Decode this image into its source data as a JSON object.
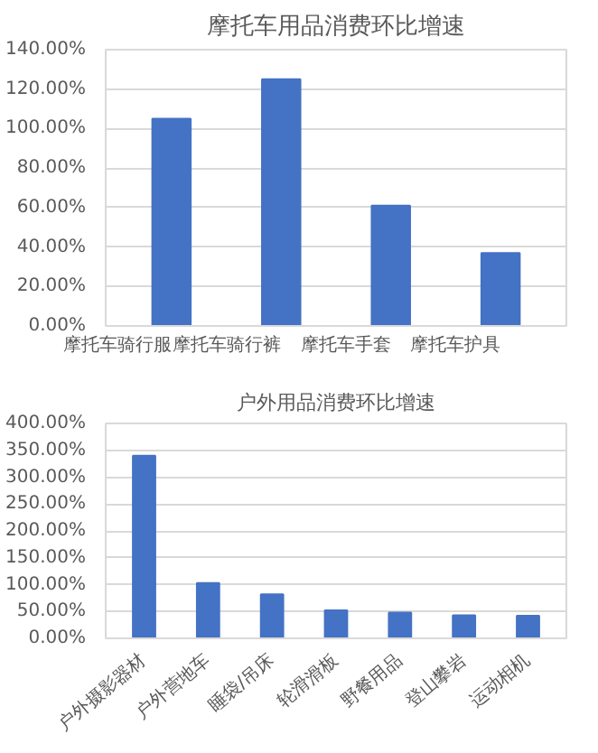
{
  "chart_data": [
    {
      "type": "bar",
      "title": "摩托车用品消费环比增速",
      "categories": [
        "摩托车骑行服",
        "摩托车骑行裤",
        "摩托车手套",
        "摩托车护具"
      ],
      "values": [
        105,
        125,
        61,
        37
      ],
      "color": "#4472c4",
      "ylim": [
        0,
        140
      ],
      "yticks": [
        {
          "value": 0,
          "label": "0.00%"
        },
        {
          "value": 20,
          "label": "20.00%"
        },
        {
          "value": 40,
          "label": "40.00%"
        },
        {
          "value": 60,
          "label": "60.00%"
        },
        {
          "value": 80,
          "label": "80.00%"
        },
        {
          "value": 100,
          "label": "100.00%"
        },
        {
          "value": 120,
          "label": "120.00%"
        },
        {
          "value": 140,
          "label": "140.00%"
        }
      ],
      "grid": "y",
      "legend": false
    },
    {
      "type": "bar",
      "title": "户外用品消费环比增速",
      "categories": [
        "户外摄影器材",
        "户外营地车",
        "睡袋/吊床",
        "轮滑滑板",
        "野餐用品",
        "登山攀岩",
        "运动相机"
      ],
      "values": [
        340,
        103,
        82,
        52,
        48,
        43,
        42
      ],
      "color": "#4472c4",
      "ylim": [
        0,
        400
      ],
      "yticks": [
        {
          "value": 0,
          "label": "0.00%"
        },
        {
          "value": 50,
          "label": "50.00%"
        },
        {
          "value": 100,
          "label": "100.00%"
        },
        {
          "value": 150,
          "label": "150.00%"
        },
        {
          "value": 200,
          "label": "200.00%"
        },
        {
          "value": 250,
          "label": "250.00%"
        },
        {
          "value": 300,
          "label": "300.00%"
        },
        {
          "value": 350,
          "label": "350.00%"
        },
        {
          "value": 400,
          "label": "400.00%"
        }
      ],
      "grid": "y",
      "legend": false
    }
  ]
}
